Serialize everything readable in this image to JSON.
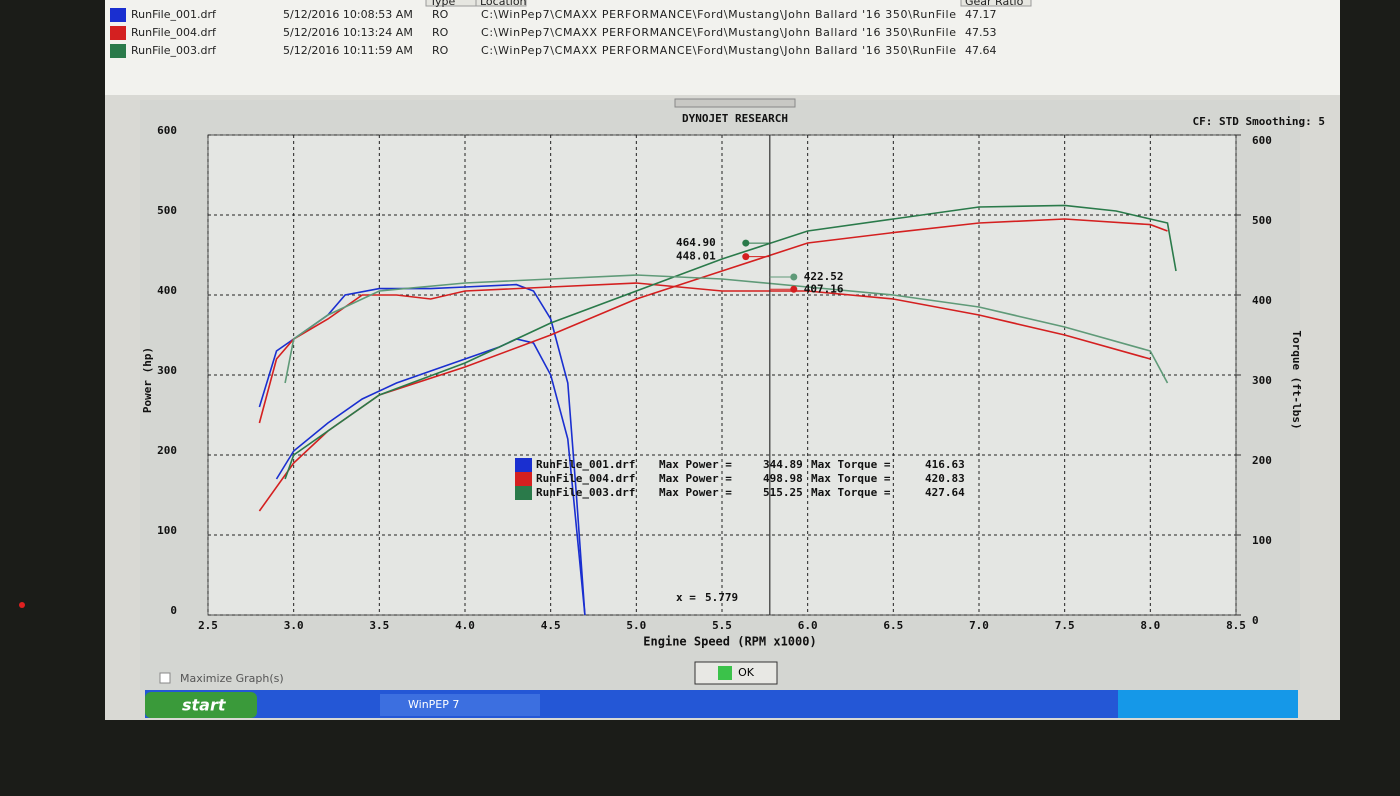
{
  "file_list": {
    "headers": [
      "Type",
      "Location",
      "Gear Ratio"
    ],
    "rows": [
      {
        "name": "RunFile_001.drf",
        "date": "5/12/2016 10:08:53 AM",
        "type": "RO",
        "location": "C:\\WinPep7\\CMAXX PERFORMANCE\\Ford\\Mustang\\John Ballard '16 350\\RunFile",
        "gear_ratio": 47.17,
        "color": "#1a2fd0"
      },
      {
        "name": "RunFile_004.drf",
        "date": "5/12/2016 10:13:24 AM",
        "type": "RO",
        "location": "C:\\WinPep7\\CMAXX PERFORMANCE\\Ford\\Mustang\\John Ballard '16 350\\RunFile",
        "gear_ratio": 47.53,
        "color": "#d42020"
      },
      {
        "name": "RunFile_003.drf",
        "date": "5/12/2016 10:11:59 AM",
        "type": "RO",
        "location": "C:\\WinPep7\\CMAXX PERFORMANCE\\Ford\\Mustang\\John Ballard '16 350\\RunFile",
        "gear_ratio": 47.64,
        "color": "#2a7a4a"
      }
    ]
  },
  "chart_data": {
    "type": "line",
    "title": "DYNOJET RESEARCH",
    "info": "CF: STD  Smoothing: 5",
    "x_label": "Engine Speed (RPM x1000)",
    "y_label": "Power (hp)",
    "y2_label": "Torque (ft-lbs)",
    "xlim": [
      2.5,
      8.5
    ],
    "xticks": [
      2.5,
      {
        "value": 3,
        "label": "3.0"
      },
      3.5,
      {
        "value": 4,
        "label": "4.0"
      },
      4.5,
      {
        "value": 5,
        "label": "5.0"
      },
      5.5,
      {
        "value": 6,
        "label": "6.0"
      },
      6.5,
      {
        "value": 7,
        "label": "7.0"
      },
      7.5,
      {
        "value": 8,
        "label": "8.0"
      },
      8.5
    ],
    "ylim": [
      0,
      600
    ],
    "yticks": [
      0,
      100,
      200,
      300,
      400,
      500,
      600
    ],
    "y2lim": [
      0,
      600
    ],
    "y2ticks": [
      0,
      100,
      200,
      300,
      400,
      500,
      600
    ],
    "grid": true,
    "series": [
      {
        "color": "#1a2fd0",
        "x": [
          2.9,
          3.0,
          3.2,
          3.4,
          3.6,
          3.8,
          4.0,
          4.2,
          4.3,
          4.4,
          4.5,
          4.6,
          4.65,
          4.7
        ],
        "values": [
          170,
          205,
          240,
          270,
          290,
          305,
          320,
          335,
          345,
          340,
          300,
          220,
          110,
          0
        ]
      },
      {
        "color": "#1a2fd0",
        "axis": "y2",
        "x": [
          2.8,
          2.9,
          3.0,
          3.2,
          3.3,
          3.5,
          3.8,
          4.0,
          4.3,
          4.4,
          4.5,
          4.6,
          4.65,
          4.7
        ],
        "values": [
          260,
          330,
          345,
          375,
          400,
          408,
          408,
          410,
          413,
          405,
          370,
          290,
          150,
          0
        ]
      },
      {
        "color": "#d42020",
        "x": [
          2.8,
          3.0,
          3.2,
          3.5,
          4.0,
          4.5,
          5.0,
          5.5,
          6.0,
          6.5,
          7.0,
          7.5,
          8.0,
          8.1
        ],
        "values": [
          130,
          190,
          230,
          275,
          310,
          350,
          395,
          430,
          465,
          478,
          490,
          495,
          488,
          480
        ]
      },
      {
        "color": "#d42020",
        "axis": "y2",
        "x": [
          2.8,
          2.9,
          3.0,
          3.2,
          3.4,
          3.6,
          3.8,
          4.0,
          4.5,
          5.0,
          5.5,
          6.0,
          6.5,
          7.0,
          7.5,
          8.0
        ],
        "values": [
          240,
          320,
          345,
          370,
          400,
          400,
          395,
          405,
          410,
          415,
          405,
          405,
          395,
          375,
          350,
          320
        ]
      },
      {
        "color": "#2a7a4a",
        "x": [
          2.95,
          3.0,
          3.5,
          4.0,
          4.5,
          5.0,
          5.5,
          6.0,
          6.5,
          7.0,
          7.5,
          7.8,
          8.1,
          8.15
        ],
        "values": [
          170,
          200,
          275,
          315,
          365,
          405,
          445,
          480,
          495,
          510,
          512,
          505,
          490,
          430
        ]
      },
      {
        "color": "#5f9a78",
        "axis": "y2",
        "x": [
          2.95,
          3.0,
          3.2,
          3.5,
          4.0,
          4.5,
          5.0,
          5.5,
          6.0,
          6.5,
          7.0,
          7.5,
          8.0,
          8.1
        ],
        "values": [
          290,
          345,
          375,
          405,
          415,
          420,
          425,
          420,
          410,
          400,
          385,
          360,
          330,
          290
        ]
      }
    ],
    "legend": [
      {
        "name": "RunFile_001.drf",
        "color": "#1a2fd0",
        "power_label": "Max Power =",
        "max_power": 344.89,
        "torque_label": "Max Torque =",
        "max_torque": 416.63
      },
      {
        "name": "RunFile_004.drf",
        "color": "#d42020",
        "power_label": "Max Power =",
        "max_power": 498.98,
        "torque_label": "Max Torque =",
        "max_torque": 420.83
      },
      {
        "name": "RunFile_003.drf",
        "color": "#2a7a4a",
        "power_label": "Max Power =",
        "max_power": 515.25,
        "torque_label": "Max Torque =",
        "max_torque": 427.64
      }
    ],
    "cursor": {
      "x_prefix": "x =",
      "x": 5.779,
      "values": [
        464.9,
        448.01,
        422.52,
        407.16
      ],
      "value_labels": [
        "464.90",
        "448.01",
        "422.52",
        "407.16"
      ],
      "colors": [
        "#2a7a4a",
        "#d42020",
        "#5f9a78",
        "#d42020"
      ]
    }
  },
  "window": {
    "maximize_label": "Maximize Graph(s)",
    "ok_button": "OK"
  },
  "taskbar": {
    "start": "start",
    "app": "WinPEP 7"
  }
}
